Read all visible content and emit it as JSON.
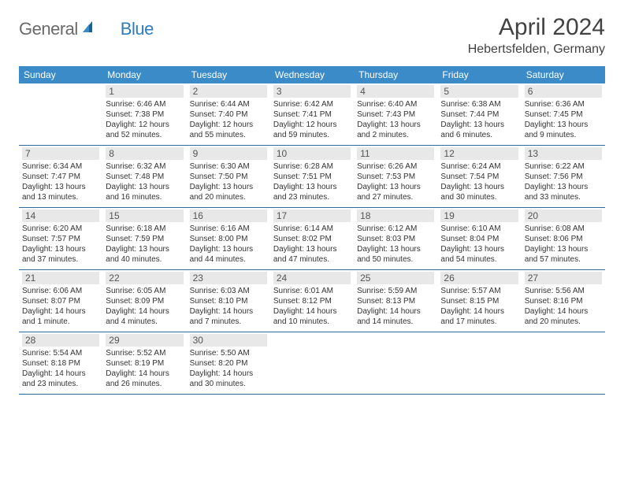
{
  "brand": {
    "text_a": "General",
    "text_b": "Blue"
  },
  "title": "April 2024",
  "location": "Hebertsfelden, Germany",
  "colors": {
    "header_bg": "#3b8bc9",
    "header_text": "#ffffff",
    "daynum_bg": "#e8e8e8",
    "daynum_text": "#555555",
    "row_border": "#2d6a9e",
    "body_text": "#333333",
    "logo_gray": "#6a6a6a",
    "logo_blue": "#2d7bbf"
  },
  "day_headers": [
    "Sunday",
    "Monday",
    "Tuesday",
    "Wednesday",
    "Thursday",
    "Friday",
    "Saturday"
  ],
  "weeks": [
    [
      {
        "num": "",
        "sunrise": "",
        "sunset": "",
        "daylight": ""
      },
      {
        "num": "1",
        "sunrise": "Sunrise: 6:46 AM",
        "sunset": "Sunset: 7:38 PM",
        "daylight": "Daylight: 12 hours and 52 minutes."
      },
      {
        "num": "2",
        "sunrise": "Sunrise: 6:44 AM",
        "sunset": "Sunset: 7:40 PM",
        "daylight": "Daylight: 12 hours and 55 minutes."
      },
      {
        "num": "3",
        "sunrise": "Sunrise: 6:42 AM",
        "sunset": "Sunset: 7:41 PM",
        "daylight": "Daylight: 12 hours and 59 minutes."
      },
      {
        "num": "4",
        "sunrise": "Sunrise: 6:40 AM",
        "sunset": "Sunset: 7:43 PM",
        "daylight": "Daylight: 13 hours and 2 minutes."
      },
      {
        "num": "5",
        "sunrise": "Sunrise: 6:38 AM",
        "sunset": "Sunset: 7:44 PM",
        "daylight": "Daylight: 13 hours and 6 minutes."
      },
      {
        "num": "6",
        "sunrise": "Sunrise: 6:36 AM",
        "sunset": "Sunset: 7:45 PM",
        "daylight": "Daylight: 13 hours and 9 minutes."
      }
    ],
    [
      {
        "num": "7",
        "sunrise": "Sunrise: 6:34 AM",
        "sunset": "Sunset: 7:47 PM",
        "daylight": "Daylight: 13 hours and 13 minutes."
      },
      {
        "num": "8",
        "sunrise": "Sunrise: 6:32 AM",
        "sunset": "Sunset: 7:48 PM",
        "daylight": "Daylight: 13 hours and 16 minutes."
      },
      {
        "num": "9",
        "sunrise": "Sunrise: 6:30 AM",
        "sunset": "Sunset: 7:50 PM",
        "daylight": "Daylight: 13 hours and 20 minutes."
      },
      {
        "num": "10",
        "sunrise": "Sunrise: 6:28 AM",
        "sunset": "Sunset: 7:51 PM",
        "daylight": "Daylight: 13 hours and 23 minutes."
      },
      {
        "num": "11",
        "sunrise": "Sunrise: 6:26 AM",
        "sunset": "Sunset: 7:53 PM",
        "daylight": "Daylight: 13 hours and 27 minutes."
      },
      {
        "num": "12",
        "sunrise": "Sunrise: 6:24 AM",
        "sunset": "Sunset: 7:54 PM",
        "daylight": "Daylight: 13 hours and 30 minutes."
      },
      {
        "num": "13",
        "sunrise": "Sunrise: 6:22 AM",
        "sunset": "Sunset: 7:56 PM",
        "daylight": "Daylight: 13 hours and 33 minutes."
      }
    ],
    [
      {
        "num": "14",
        "sunrise": "Sunrise: 6:20 AM",
        "sunset": "Sunset: 7:57 PM",
        "daylight": "Daylight: 13 hours and 37 minutes."
      },
      {
        "num": "15",
        "sunrise": "Sunrise: 6:18 AM",
        "sunset": "Sunset: 7:59 PM",
        "daylight": "Daylight: 13 hours and 40 minutes."
      },
      {
        "num": "16",
        "sunrise": "Sunrise: 6:16 AM",
        "sunset": "Sunset: 8:00 PM",
        "daylight": "Daylight: 13 hours and 44 minutes."
      },
      {
        "num": "17",
        "sunrise": "Sunrise: 6:14 AM",
        "sunset": "Sunset: 8:02 PM",
        "daylight": "Daylight: 13 hours and 47 minutes."
      },
      {
        "num": "18",
        "sunrise": "Sunrise: 6:12 AM",
        "sunset": "Sunset: 8:03 PM",
        "daylight": "Daylight: 13 hours and 50 minutes."
      },
      {
        "num": "19",
        "sunrise": "Sunrise: 6:10 AM",
        "sunset": "Sunset: 8:04 PM",
        "daylight": "Daylight: 13 hours and 54 minutes."
      },
      {
        "num": "20",
        "sunrise": "Sunrise: 6:08 AM",
        "sunset": "Sunset: 8:06 PM",
        "daylight": "Daylight: 13 hours and 57 minutes."
      }
    ],
    [
      {
        "num": "21",
        "sunrise": "Sunrise: 6:06 AM",
        "sunset": "Sunset: 8:07 PM",
        "daylight": "Daylight: 14 hours and 1 minute."
      },
      {
        "num": "22",
        "sunrise": "Sunrise: 6:05 AM",
        "sunset": "Sunset: 8:09 PM",
        "daylight": "Daylight: 14 hours and 4 minutes."
      },
      {
        "num": "23",
        "sunrise": "Sunrise: 6:03 AM",
        "sunset": "Sunset: 8:10 PM",
        "daylight": "Daylight: 14 hours and 7 minutes."
      },
      {
        "num": "24",
        "sunrise": "Sunrise: 6:01 AM",
        "sunset": "Sunset: 8:12 PM",
        "daylight": "Daylight: 14 hours and 10 minutes."
      },
      {
        "num": "25",
        "sunrise": "Sunrise: 5:59 AM",
        "sunset": "Sunset: 8:13 PM",
        "daylight": "Daylight: 14 hours and 14 minutes."
      },
      {
        "num": "26",
        "sunrise": "Sunrise: 5:57 AM",
        "sunset": "Sunset: 8:15 PM",
        "daylight": "Daylight: 14 hours and 17 minutes."
      },
      {
        "num": "27",
        "sunrise": "Sunrise: 5:56 AM",
        "sunset": "Sunset: 8:16 PM",
        "daylight": "Daylight: 14 hours and 20 minutes."
      }
    ],
    [
      {
        "num": "28",
        "sunrise": "Sunrise: 5:54 AM",
        "sunset": "Sunset: 8:18 PM",
        "daylight": "Daylight: 14 hours and 23 minutes."
      },
      {
        "num": "29",
        "sunrise": "Sunrise: 5:52 AM",
        "sunset": "Sunset: 8:19 PM",
        "daylight": "Daylight: 14 hours and 26 minutes."
      },
      {
        "num": "30",
        "sunrise": "Sunrise: 5:50 AM",
        "sunset": "Sunset: 8:20 PM",
        "daylight": "Daylight: 14 hours and 30 minutes."
      },
      {
        "num": "",
        "sunrise": "",
        "sunset": "",
        "daylight": ""
      },
      {
        "num": "",
        "sunrise": "",
        "sunset": "",
        "daylight": ""
      },
      {
        "num": "",
        "sunrise": "",
        "sunset": "",
        "daylight": ""
      },
      {
        "num": "",
        "sunrise": "",
        "sunset": "",
        "daylight": ""
      }
    ]
  ]
}
